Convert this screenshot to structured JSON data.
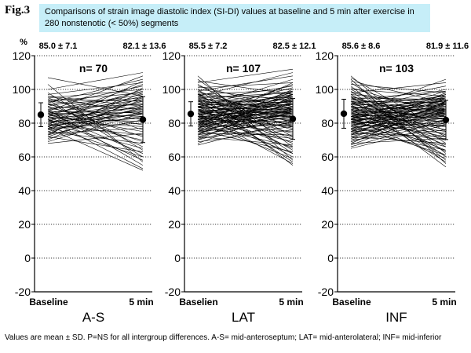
{
  "figure": {
    "label": "Fig.3",
    "header": "Comparisons of strain image diastolic index (SI-DI) values at baseline and 5 min after exercise in 280 nonstenotic (< 50%) segments",
    "y_unit": "%",
    "footnote": "Values are mean ± SD. P=NS for all intergroup differences. A-S= mid-anteroseptum; LAT= mid-anterolateral; INF= mid-inferior"
  },
  "colors": {
    "header_bg": "#c6eef8",
    "lines": "#000000",
    "grid": "#000000"
  },
  "chart_data": [
    {
      "type": "line",
      "panel_label": "A-S",
      "n_label": "n= 70",
      "categories": [
        "Baseline",
        "5 min"
      ],
      "baseline_label": "85.0 ± 7.1",
      "after_label": "82.1 ± 13.6",
      "baseline": {
        "mean": 85.0,
        "sd": 7.1
      },
      "after": {
        "mean": 82.1,
        "sd": 13.6
      },
      "ylim": [
        -20,
        120
      ],
      "yticks": [
        -20,
        0,
        20,
        40,
        60,
        80,
        100,
        120
      ],
      "grid": true,
      "series": [
        [
          107,
          96
        ],
        [
          103,
          57
        ],
        [
          100,
          110
        ],
        [
          98,
          64
        ],
        [
          97,
          104
        ],
        [
          96,
          90
        ],
        [
          96,
          85
        ],
        [
          95,
          100
        ],
        [
          95,
          76
        ],
        [
          94,
          93
        ],
        [
          94,
          60
        ],
        [
          93,
          98
        ],
        [
          93,
          88
        ],
        [
          92,
          66
        ],
        [
          92,
          106
        ],
        [
          91,
          95
        ],
        [
          91,
          82
        ],
        [
          90,
          72
        ],
        [
          90,
          102
        ],
        [
          89,
          91
        ],
        [
          89,
          79
        ],
        [
          88,
          55
        ],
        [
          88,
          97
        ],
        [
          87,
          86
        ],
        [
          87,
          69
        ],
        [
          87,
          108
        ],
        [
          86,
          94
        ],
        [
          86,
          84
        ],
        [
          86,
          62
        ],
        [
          85,
          99
        ],
        [
          85,
          89
        ],
        [
          85,
          75
        ],
        [
          84,
          92
        ],
        [
          84,
          58
        ],
        [
          84,
          103
        ],
        [
          83,
          87
        ],
        [
          83,
          81
        ],
        [
          83,
          96
        ],
        [
          82,
          70
        ],
        [
          82,
          90
        ],
        [
          82,
          53
        ],
        [
          81,
          85
        ],
        [
          81,
          100
        ],
        [
          81,
          78
        ],
        [
          80,
          93
        ],
        [
          80,
          65
        ],
        [
          80,
          88
        ],
        [
          79,
          105
        ],
        [
          79,
          83
        ],
        [
          79,
          73
        ],
        [
          78,
          95
        ],
        [
          78,
          60
        ],
        [
          78,
          86
        ],
        [
          77,
          91
        ],
        [
          77,
          80
        ],
        [
          77,
          52
        ],
        [
          76,
          98
        ],
        [
          76,
          84
        ],
        [
          75,
          68
        ],
        [
          75,
          89
        ],
        [
          74,
          94
        ],
        [
          74,
          77
        ],
        [
          73,
          87
        ],
        [
          73,
          101
        ],
        [
          72,
          63
        ],
        [
          72,
          90
        ],
        [
          71,
          82
        ],
        [
          70,
          96
        ],
        [
          69,
          86
        ],
        [
          68,
          74
        ]
      ]
    },
    {
      "type": "line",
      "panel_label": "LAT",
      "n_label": "n= 107",
      "categories": [
        "Baselien",
        "5 min"
      ],
      "baseline_label": "85.5 ± 7.2",
      "after_label": "82.5 ± 12.1",
      "baseline": {
        "mean": 85.5,
        "sd": 7.2
      },
      "after": {
        "mean": 82.5,
        "sd": 12.1
      },
      "ylim": [
        -20,
        120
      ],
      "yticks": [
        -20,
        0,
        20,
        40,
        60,
        80,
        100,
        120
      ],
      "grid": true,
      "series": [
        [
          108,
          58
        ],
        [
          106,
          66
        ],
        [
          105,
          97
        ],
        [
          104,
          112
        ],
        [
          103,
          72
        ],
        [
          102,
          88
        ],
        [
          101,
          104
        ],
        [
          100,
          62
        ],
        [
          100,
          93
        ],
        [
          99,
          80
        ],
        [
          99,
          108
        ],
        [
          98,
          55
        ],
        [
          98,
          90
        ],
        [
          97,
          85
        ],
        [
          97,
          100
        ],
        [
          97,
          70
        ],
        [
          96,
          95
        ],
        [
          96,
          78
        ],
        [
          96,
          110
        ],
        [
          95,
          87
        ],
        [
          95,
          64
        ],
        [
          95,
          98
        ],
        [
          94,
          83
        ],
        [
          94,
          92
        ],
        [
          94,
          57
        ],
        [
          93,
          89
        ],
        [
          93,
          102
        ],
        [
          93,
          76
        ],
        [
          92,
          94
        ],
        [
          92,
          68
        ],
        [
          92,
          86
        ],
        [
          91,
          99
        ],
        [
          91,
          81
        ],
        [
          91,
          91
        ],
        [
          90,
          60
        ],
        [
          90,
          96
        ],
        [
          90,
          84
        ],
        [
          90,
          74
        ],
        [
          89,
          106
        ],
        [
          89,
          88
        ],
        [
          89,
          93
        ],
        [
          88,
          79
        ],
        [
          88,
          97
        ],
        [
          88,
          65
        ],
        [
          88,
          86
        ],
        [
          87,
          91
        ],
        [
          87,
          101
        ],
        [
          87,
          77
        ],
        [
          87,
          84
        ],
        [
          86,
          95
        ],
        [
          86,
          56
        ],
        [
          86,
          89
        ],
        [
          86,
          82
        ],
        [
          85,
          98
        ],
        [
          85,
          72
        ],
        [
          85,
          87
        ],
        [
          85,
          93
        ],
        [
          84,
          80
        ],
        [
          84,
          103
        ],
        [
          84,
          86
        ],
        [
          84,
          62
        ],
        [
          83,
          90
        ],
        [
          83,
          96
        ],
        [
          83,
          78
        ],
        [
          83,
          84
        ],
        [
          82,
          92
        ],
        [
          82,
          69
        ],
        [
          82,
          99
        ],
        [
          82,
          87
        ],
        [
          81,
          81
        ],
        [
          81,
          94
        ],
        [
          81,
          59
        ],
        [
          81,
          88
        ],
        [
          80,
          97
        ],
        [
          80,
          75
        ],
        [
          80,
          85
        ],
        [
          80,
          91
        ],
        [
          79,
          83
        ],
        [
          79,
          104
        ],
        [
          79,
          66
        ],
        [
          79,
          89
        ],
        [
          78,
          94
        ],
        [
          78,
          79
        ],
        [
          78,
          86
        ],
        [
          77,
          100
        ],
        [
          77,
          71
        ],
        [
          77,
          90
        ],
        [
          76,
          84
        ],
        [
          76,
          95
        ],
        [
          76,
          63
        ],
        [
          75,
          88
        ],
        [
          75,
          80
        ],
        [
          75,
          97
        ],
        [
          74,
          86
        ],
        [
          74,
          73
        ],
        [
          74,
          92
        ],
        [
          73,
          82
        ],
        [
          73,
          99
        ],
        [
          72,
          87
        ],
        [
          72,
          67
        ],
        [
          71,
          93
        ],
        [
          71,
          78
        ],
        [
          70,
          85
        ],
        [
          70,
          96
        ],
        [
          69,
          76
        ],
        [
          68,
          89
        ],
        [
          67,
          81
        ]
      ]
    },
    {
      "type": "line",
      "panel_label": "INF",
      "n_label": "n= 103",
      "categories": [
        "Baseline",
        "5 min"
      ],
      "baseline_label": "85.6 ± 8.6",
      "after_label": "81.9 ± 11.6",
      "baseline": {
        "mean": 85.6,
        "sd": 8.6
      },
      "after": {
        "mean": 81.9,
        "sd": 11.6
      },
      "ylim": [
        -20,
        120
      ],
      "yticks": [
        -20,
        0,
        20,
        40,
        60,
        80,
        100,
        120
      ],
      "grid": true,
      "series": [
        [
          108,
          62
        ],
        [
          107,
          75
        ],
        [
          106,
          56
        ],
        [
          105,
          92
        ],
        [
          104,
          68
        ],
        [
          103,
          98
        ],
        [
          102,
          58
        ],
        [
          101,
          85
        ],
        [
          100,
          72
        ],
        [
          100,
          96
        ],
        [
          99,
          60
        ],
        [
          98,
          88
        ],
        [
          98,
          104
        ],
        [
          97,
          66
        ],
        [
          97,
          91
        ],
        [
          96,
          79
        ],
        [
          96,
          54
        ],
        [
          95,
          94
        ],
        [
          95,
          84
        ],
        [
          95,
          70
        ],
        [
          94,
          99
        ],
        [
          94,
          87
        ],
        [
          93,
          63
        ],
        [
          93,
          92
        ],
        [
          93,
          80
        ],
        [
          92,
          95
        ],
        [
          92,
          73
        ],
        [
          92,
          86
        ],
        [
          91,
          57
        ],
        [
          91,
          90
        ],
        [
          91,
          102
        ],
        [
          90,
          82
        ],
        [
          90,
          96
        ],
        [
          90,
          67
        ],
        [
          89,
          88
        ],
        [
          89,
          93
        ],
        [
          89,
          76
        ],
        [
          88,
          84
        ],
        [
          88,
          100
        ],
        [
          88,
          61
        ],
        [
          87,
          91
        ],
        [
          87,
          85
        ],
        [
          87,
          95
        ],
        [
          86,
          78
        ],
        [
          86,
          89
        ],
        [
          86,
          106
        ],
        [
          86,
          70
        ],
        [
          85,
          94
        ],
        [
          85,
          83
        ],
        [
          85,
          88
        ],
        [
          85,
          64
        ],
        [
          84,
          97
        ],
        [
          84,
          86
        ],
        [
          84,
          75
        ],
        [
          84,
          92
        ],
        [
          83,
          81
        ],
        [
          83,
          90
        ],
        [
          83,
          59
        ],
        [
          83,
          95
        ],
        [
          82,
          87
        ],
        [
          82,
          72
        ],
        [
          82,
          99
        ],
        [
          82,
          84
        ],
        [
          81,
          91
        ],
        [
          81,
          78
        ],
        [
          81,
          88
        ],
        [
          81,
          66
        ],
        [
          80,
          94
        ],
        [
          80,
          83
        ],
        [
          80,
          97
        ],
        [
          80,
          74
        ],
        [
          79,
          89
        ],
        [
          79,
          86
        ],
        [
          79,
          61
        ],
        [
          78,
          92
        ],
        [
          78,
          80
        ],
        [
          78,
          96
        ],
        [
          77,
          85
        ],
        [
          77,
          70
        ],
        [
          77,
          90
        ],
        [
          76,
          83
        ],
        [
          76,
          94
        ],
        [
          76,
          64
        ],
        [
          75,
          88
        ],
        [
          75,
          79
        ],
        [
          75,
          98
        ],
        [
          74,
          86
        ],
        [
          74,
          72
        ],
        [
          74,
          91
        ],
        [
          73,
          82
        ],
        [
          73,
          95
        ],
        [
          72,
          87
        ],
        [
          72,
          68
        ],
        [
          71,
          92
        ],
        [
          71,
          80
        ],
        [
          70,
          89
        ],
        [
          70,
          76
        ],
        [
          69,
          85
        ],
        [
          68,
          93
        ],
        [
          68,
          71
        ],
        [
          67,
          88
        ],
        [
          66,
          82
        ],
        [
          65,
          79
        ]
      ]
    }
  ]
}
